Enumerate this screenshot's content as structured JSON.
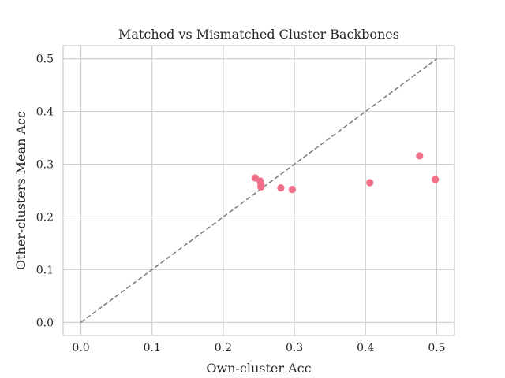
{
  "chart_data": {
    "type": "scatter",
    "title": "Matched vs Mismatched Cluster Backbones",
    "xlabel": "Own-cluster Acc",
    "ylabel": "Other-clusters Mean Acc",
    "xlim": [
      -0.025,
      0.525
    ],
    "ylim": [
      -0.025,
      0.525
    ],
    "xticks": [
      0.0,
      0.1,
      0.2,
      0.3,
      0.4,
      0.5
    ],
    "yticks": [
      0.0,
      0.1,
      0.2,
      0.3,
      0.4,
      0.5
    ],
    "xtick_labels": [
      "0.0",
      "0.1",
      "0.2",
      "0.3",
      "0.4",
      "0.5"
    ],
    "ytick_labels": [
      "0.0",
      "0.1",
      "0.2",
      "0.3",
      "0.4",
      "0.5"
    ],
    "grid": true,
    "reference_line": {
      "x": [
        0.0,
        0.5
      ],
      "y": [
        0.0,
        0.5
      ],
      "style": "dashed",
      "color": "#808080"
    },
    "series": [
      {
        "color": "#f0708a",
        "points": [
          {
            "x": 0.245,
            "y": 0.274
          },
          {
            "x": 0.252,
            "y": 0.268
          },
          {
            "x": 0.253,
            "y": 0.262
          },
          {
            "x": 0.253,
            "y": 0.257
          },
          {
            "x": 0.281,
            "y": 0.255
          },
          {
            "x": 0.297,
            "y": 0.252
          },
          {
            "x": 0.406,
            "y": 0.265
          },
          {
            "x": 0.476,
            "y": 0.316
          },
          {
            "x": 0.498,
            "y": 0.271
          }
        ]
      }
    ]
  }
}
